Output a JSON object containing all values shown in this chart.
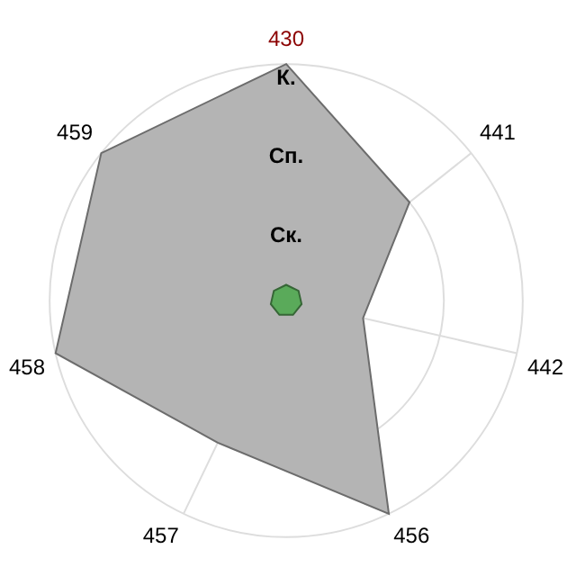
{
  "chart_data": {
    "type": "radar",
    "categories": [
      "430",
      "441",
      "442",
      "456",
      "457",
      "458",
      "459"
    ],
    "series": [
      {
        "color": "#b4b4b4",
        "values": [
          3,
          2,
          1,
          3,
          2,
          3,
          3
        ]
      },
      {
        "color": "#5aaa5a",
        "values": [
          0.2,
          0.2,
          0.2,
          0.2,
          0.2,
          0.2,
          0.2
        ]
      }
    ],
    "ylim": [
      0,
      3
    ],
    "yticks": [
      {
        "value": 1,
        "label": "Ск."
      },
      {
        "value": 2,
        "label": "Сп."
      },
      {
        "value": 3,
        "label": "К."
      }
    ],
    "grid": true,
    "legend": false,
    "marker": "none"
  }
}
